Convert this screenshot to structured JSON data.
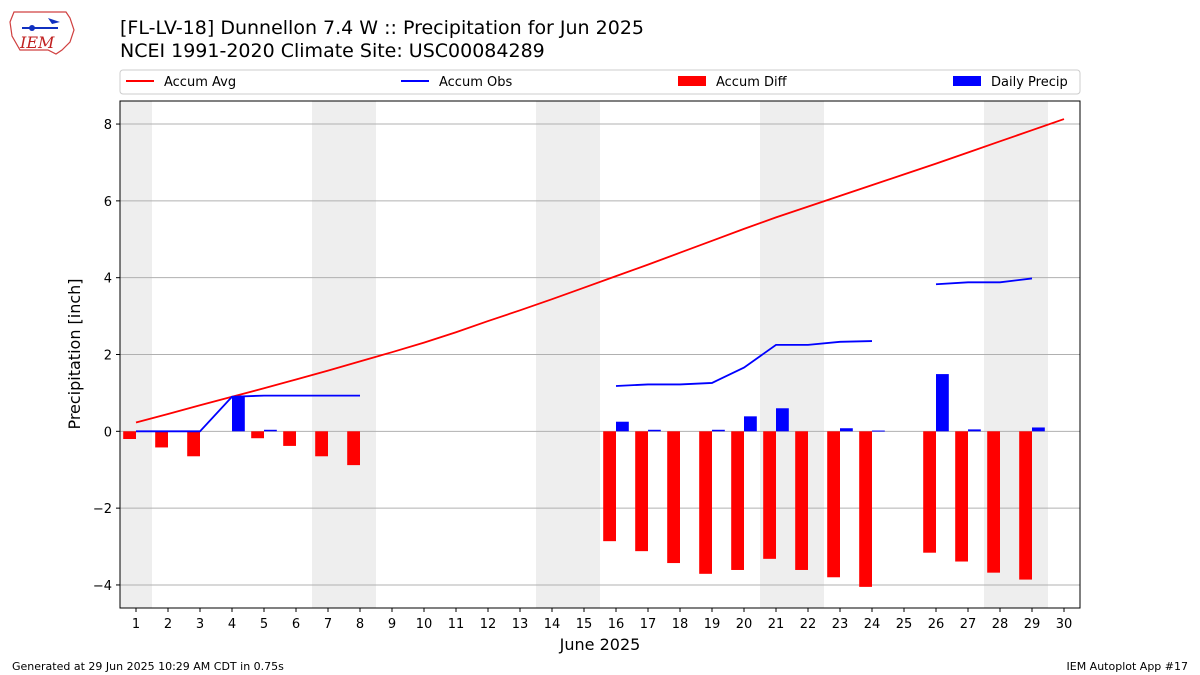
{
  "header": {
    "title": "[FL-LV-18] Dunnellon 7.4 W :: Precipitation for Jun 2025",
    "subtitle": "NCEI 1991-2020 Climate Site: USC00084289",
    "logo_text": "IEM"
  },
  "footer": {
    "generated": "Generated at 29 Jun 2025 10:29 AM CDT in 0.75s",
    "app": "IEM Autoplot App #17"
  },
  "colors": {
    "accum_avg": "#ff0000",
    "accum_obs": "#0000ff",
    "accum_diff": "#ff0000",
    "daily_precip": "#0000ff",
    "weekend_band": "#eeeeee",
    "grid": "#b0b0b0"
  },
  "chart_data": {
    "type": "bar",
    "xlabel": "June 2025",
    "ylabel": "Precipitation [inch]",
    "xlim": [
      0.5,
      30.5
    ],
    "ylim": [
      -4.6,
      8.6
    ],
    "yticks": [
      -4,
      -2,
      0,
      2,
      4,
      6,
      8
    ],
    "ytick_labels": [
      "−4",
      "−2",
      "0",
      "2",
      "4",
      "6",
      "8"
    ],
    "xticks": [
      1,
      2,
      3,
      4,
      5,
      6,
      7,
      8,
      9,
      10,
      11,
      12,
      13,
      14,
      15,
      16,
      17,
      18,
      19,
      20,
      21,
      22,
      23,
      24,
      25,
      26,
      27,
      28,
      29,
      30
    ],
    "grid": "horizontal",
    "legend_position": "top",
    "legend": [
      "Accum Avg",
      "Accum Obs",
      "Accum Diff",
      "Daily Precip"
    ],
    "weekend_days": [
      1,
      7,
      8,
      14,
      15,
      21,
      22,
      28,
      29
    ],
    "series": [
      {
        "name": "Accum Avg",
        "type": "line",
        "x": [
          1,
          2,
          3,
          4,
          5,
          6,
          7,
          8,
          9,
          10,
          11,
          12,
          13,
          14,
          15,
          16,
          17,
          18,
          19,
          20,
          21,
          22,
          23,
          24,
          25,
          26,
          27,
          28,
          29,
          30
        ],
        "values": [
          0.23,
          0.45,
          0.68,
          0.9,
          1.12,
          1.35,
          1.58,
          1.82,
          2.06,
          2.31,
          2.58,
          2.87,
          3.15,
          3.44,
          3.74,
          4.04,
          4.34,
          4.65,
          4.96,
          5.27,
          5.57,
          5.85,
          6.13,
          6.41,
          6.69,
          6.97,
          7.26,
          7.55,
          7.84,
          8.13
        ]
      },
      {
        "name": "Accum Obs",
        "type": "line",
        "segments": [
          {
            "x": [
              1,
              2,
              3,
              4,
              5,
              6,
              7,
              8
            ],
            "values": [
              0.0,
              0.0,
              0.0,
              0.9,
              0.93,
              0.93,
              0.93,
              0.93
            ]
          },
          {
            "x": [
              16,
              17,
              18,
              19,
              20,
              21,
              22,
              23,
              24
            ],
            "values": [
              1.18,
              1.22,
              1.22,
              1.26,
              1.66,
              2.25,
              2.25,
              2.33,
              2.35
            ]
          },
          {
            "x": [
              26,
              27,
              28,
              29
            ],
            "values": [
              3.83,
              3.88,
              3.88,
              3.98
            ]
          }
        ]
      },
      {
        "name": "Accum Diff",
        "type": "bar",
        "x": [
          1,
          2,
          3,
          5,
          6,
          7,
          8,
          16,
          17,
          18,
          19,
          20,
          21,
          22,
          23,
          24,
          26,
          27,
          28,
          29
        ],
        "values": [
          -0.2,
          -0.42,
          -0.65,
          -0.18,
          -0.38,
          -0.65,
          -0.88,
          -2.86,
          -3.12,
          -3.43,
          -3.71,
          -3.61,
          -3.32,
          -3.61,
          -3.8,
          -4.05,
          -3.16,
          -3.39,
          -3.68,
          -3.86
        ]
      },
      {
        "name": "Daily Precip",
        "type": "bar",
        "x": [
          4,
          5,
          16,
          17,
          19,
          20,
          21,
          23,
          24,
          26,
          27,
          29
        ],
        "values": [
          0.9,
          0.04,
          0.25,
          0.04,
          0.04,
          0.39,
          0.6,
          0.08,
          0.02,
          1.49,
          0.05,
          0.1
        ]
      }
    ]
  }
}
